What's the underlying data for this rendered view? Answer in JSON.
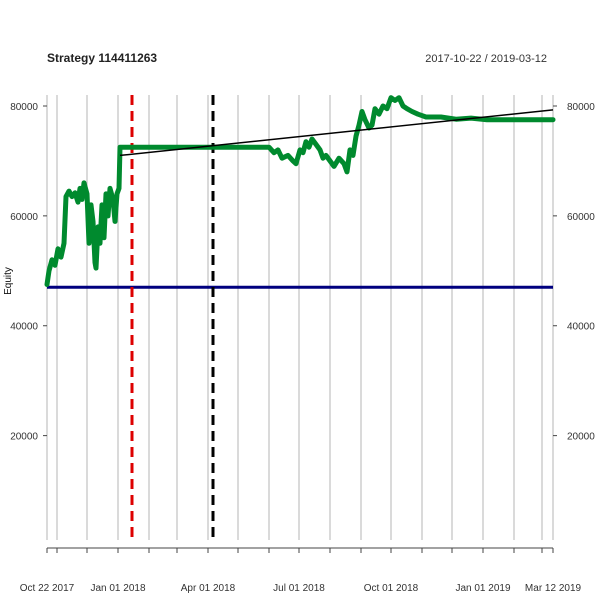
{
  "chart_data": {
    "type": "line",
    "title": "Strategy 114411263",
    "subtitle": "2017-10-22 / 2019-03-12",
    "xlabel": "",
    "ylabel": "Equity",
    "x_range": [
      "2017-10-22",
      "2019-03-12"
    ],
    "ylim": [
      0,
      82000
    ],
    "yticks": [
      20000,
      40000,
      60000,
      80000
    ],
    "ytick_labels": [
      "20000",
      "40000",
      "60000",
      "80000"
    ],
    "x_tick_dates": [
      "2017-10-22",
      "2017-11-01",
      "2017-12-01",
      "2018-01-01",
      "2018-02-01",
      "2018-03-01",
      "2018-04-01",
      "2018-05-01",
      "2018-06-01",
      "2018-07-01",
      "2018-08-01",
      "2018-09-01",
      "2018-10-01",
      "2018-11-01",
      "2018-12-01",
      "2019-01-01",
      "2019-02-01",
      "2019-03-01",
      "2019-03-12"
    ],
    "x_labels": [
      {
        "date": "2017-10-22",
        "label": "Oct 22 2017"
      },
      {
        "date": "2018-01-01",
        "label": "Jan 01 2018"
      },
      {
        "date": "2018-04-01",
        "label": "Apr 01 2018"
      },
      {
        "date": "2018-07-01",
        "label": "Jul 01 2018"
      },
      {
        "date": "2018-10-01",
        "label": "Oct 01 2018"
      },
      {
        "date": "2019-01-01",
        "label": "Jan 01 2019"
      },
      {
        "date": "2019-03-12",
        "label": "Mar 12 2019"
      }
    ],
    "grid": true,
    "series": [
      {
        "color": "#008a2e",
        "points": [
          [
            "2017-10-22",
            47500
          ],
          [
            "2017-10-24",
            50000
          ],
          [
            "2017-10-27",
            52000
          ],
          [
            "2017-10-30",
            51000
          ],
          [
            "2017-11-02",
            54000
          ],
          [
            "2017-11-05",
            52500
          ],
          [
            "2017-11-08",
            55000
          ],
          [
            "2017-11-10",
            63500
          ],
          [
            "2017-11-13",
            64500
          ],
          [
            "2017-11-16",
            63500
          ],
          [
            "2017-11-19",
            64200
          ],
          [
            "2017-11-22",
            62500
          ],
          [
            "2017-11-24",
            65000
          ],
          [
            "2017-11-26",
            63000
          ],
          [
            "2017-11-28",
            66000
          ],
          [
            "2017-12-01",
            64000
          ],
          [
            "2017-12-03",
            55000
          ],
          [
            "2017-12-05",
            62000
          ],
          [
            "2017-12-07",
            59000
          ],
          [
            "2017-12-09",
            51500
          ],
          [
            "2017-12-10",
            50500
          ],
          [
            "2017-12-12",
            58000
          ],
          [
            "2017-12-14",
            55000
          ],
          [
            "2017-12-16",
            62000
          ],
          [
            "2017-12-18",
            56000
          ],
          [
            "2017-12-20",
            64000
          ],
          [
            "2017-12-22",
            60000
          ],
          [
            "2017-12-24",
            65000
          ],
          [
            "2017-12-27",
            63000
          ],
          [
            "2017-12-29",
            59000
          ],
          [
            "2017-12-31",
            64000
          ],
          [
            "2018-01-02",
            65000
          ],
          [
            "2018-01-03",
            72500
          ],
          [
            "2018-02-15",
            72500
          ],
          [
            "2018-04-01",
            72500
          ],
          [
            "2018-05-15",
            72500
          ],
          [
            "2018-06-01",
            72500
          ],
          [
            "2018-06-06",
            71500
          ],
          [
            "2018-06-10",
            72000
          ],
          [
            "2018-06-14",
            70500
          ],
          [
            "2018-06-20",
            71000
          ],
          [
            "2018-06-25",
            70000
          ],
          [
            "2018-06-28",
            69500
          ],
          [
            "2018-07-02",
            72000
          ],
          [
            "2018-07-05",
            71500
          ],
          [
            "2018-07-08",
            73500
          ],
          [
            "2018-07-11",
            72500
          ],
          [
            "2018-07-14",
            74000
          ],
          [
            "2018-07-18",
            73000
          ],
          [
            "2018-07-22",
            72000
          ],
          [
            "2018-07-25",
            70500
          ],
          [
            "2018-07-28",
            71000
          ],
          [
            "2018-08-01",
            70000
          ],
          [
            "2018-08-05",
            69000
          ],
          [
            "2018-08-10",
            70500
          ],
          [
            "2018-08-15",
            69500
          ],
          [
            "2018-08-18",
            68000
          ],
          [
            "2018-08-21",
            72000
          ],
          [
            "2018-08-24",
            71000
          ],
          [
            "2018-08-27",
            74500
          ],
          [
            "2018-08-30",
            76500
          ],
          [
            "2018-09-02",
            79000
          ],
          [
            "2018-09-05",
            77500
          ],
          [
            "2018-09-09",
            76000
          ],
          [
            "2018-09-12",
            76500
          ],
          [
            "2018-09-15",
            79500
          ],
          [
            "2018-09-19",
            78500
          ],
          [
            "2018-09-23",
            80000
          ],
          [
            "2018-09-27",
            79500
          ],
          [
            "2018-10-01",
            81500
          ],
          [
            "2018-10-05",
            81000
          ],
          [
            "2018-10-09",
            81500
          ],
          [
            "2018-10-13",
            80000
          ],
          [
            "2018-10-17",
            79500
          ],
          [
            "2018-10-22",
            79000
          ],
          [
            "2018-10-28",
            78500
          ],
          [
            "2018-11-05",
            78000
          ],
          [
            "2018-11-20",
            78000
          ],
          [
            "2018-12-05",
            77600
          ],
          [
            "2018-12-20",
            77800
          ],
          [
            "2019-01-05",
            77500
          ],
          [
            "2019-02-01",
            77500
          ],
          [
            "2019-03-12",
            77500
          ]
        ]
      }
    ],
    "reference_lines": [
      {
        "kind": "horizontal",
        "y": 47000,
        "color": "#00007f",
        "style": "solid"
      },
      {
        "kind": "vertical",
        "x": "2018-01-15",
        "color": "#dd0000",
        "style": "dashed"
      },
      {
        "kind": "vertical",
        "x": "2018-04-06",
        "color": "#000000",
        "style": "dashed"
      },
      {
        "kind": "trend",
        "from": [
          "2018-01-03",
          71000
        ],
        "to": [
          "2019-03-12",
          79300
        ],
        "color": "#000000",
        "style": "solid"
      }
    ]
  }
}
